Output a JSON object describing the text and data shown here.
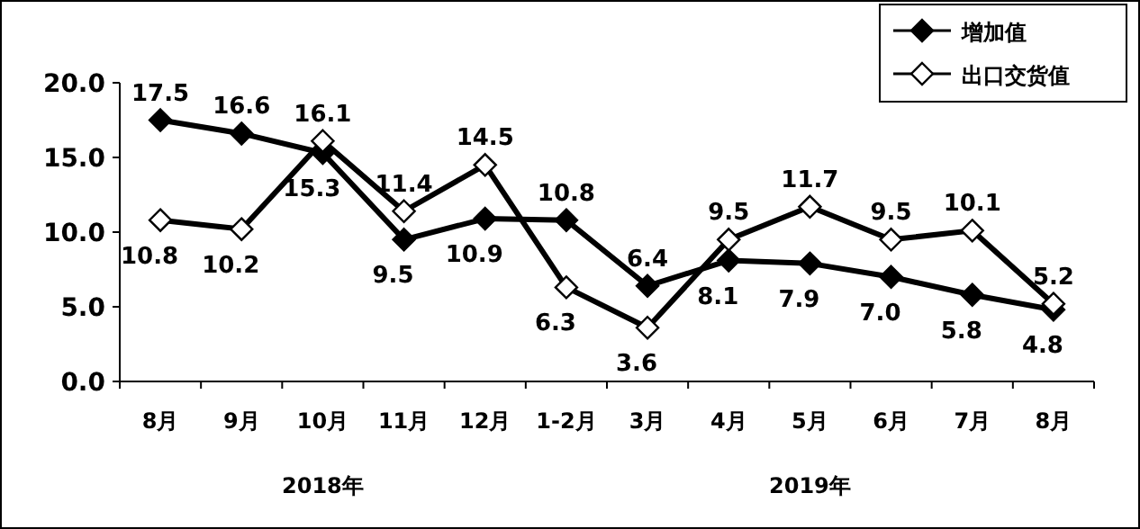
{
  "chart_data": {
    "type": "line",
    "categories": [
      "8月",
      "9月",
      "10月",
      "11月",
      "12月",
      "1-2月",
      "3月",
      "4月",
      "5月",
      "6月",
      "7月",
      "8月"
    ],
    "series": [
      {
        "name": "增加值",
        "color": "#000000",
        "values": [
          17.5,
          16.6,
          15.3,
          9.5,
          10.9,
          10.8,
          6.4,
          8.1,
          7.9,
          7.0,
          5.8,
          4.8
        ],
        "value_labels": [
          "17.5",
          "16.6",
          "15.3",
          "9.5",
          "10.9",
          "10.8",
          "6.4",
          "8.1",
          "7.9",
          "7.0",
          "5.8",
          "4.8"
        ]
      },
      {
        "name": "出口交货值",
        "color": "#000000",
        "values": [
          10.8,
          10.2,
          16.1,
          11.4,
          14.5,
          6.3,
          3.6,
          9.5,
          11.7,
          9.5,
          10.1,
          5.2
        ],
        "value_labels": [
          "10.8",
          "10.2",
          "16.1",
          "11.4",
          "14.5",
          "6.3",
          "3.6",
          "9.5",
          "11.7",
          "9.5",
          "10.1",
          "5.2"
        ]
      }
    ],
    "ylim": [
      0,
      20
    ],
    "yticks": [
      {
        "value": 0,
        "label": "0.0"
      },
      {
        "value": 5,
        "label": "5.0"
      },
      {
        "value": 10,
        "label": "10.0"
      },
      {
        "value": 15,
        "label": "15.0"
      },
      {
        "value": 20,
        "label": "20.0"
      }
    ],
    "annotations": [
      "2018年",
      "2019年"
    ],
    "legend": "top right",
    "marker": "diamond",
    "line_style": "solid",
    "grid": false
  }
}
